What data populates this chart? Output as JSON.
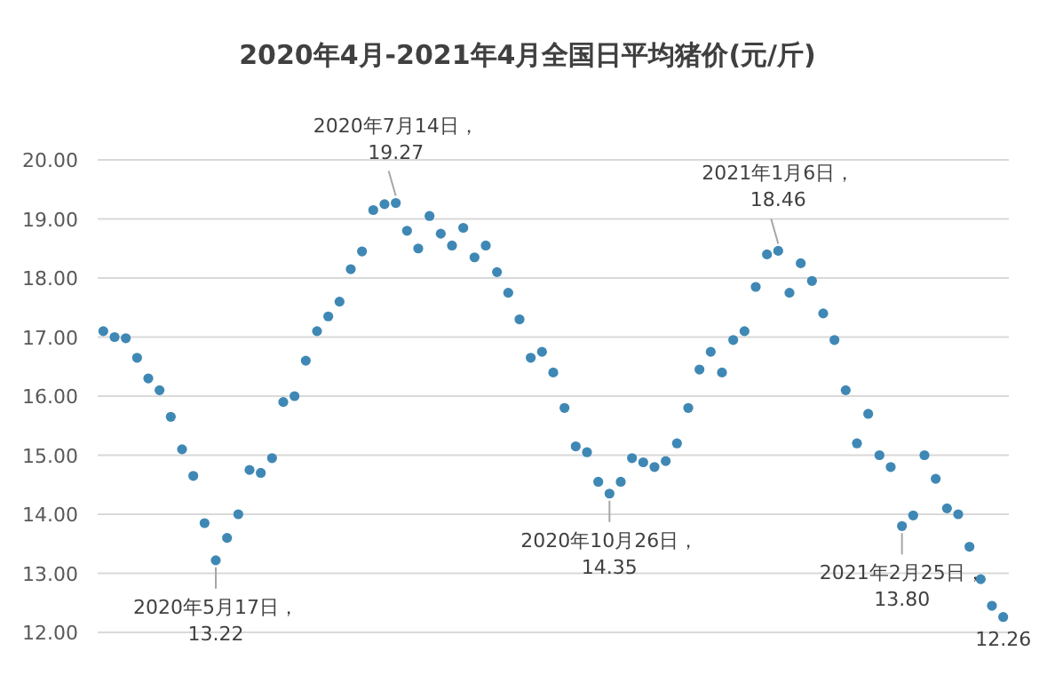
{
  "chart_data": {
    "type": "scatter",
    "title": "2020年4月-2021年4月全国日平均猪价(元/斤)",
    "categories": [
      null,
      null,
      null,
      null,
      null,
      null,
      null,
      null,
      null,
      null,
      null,
      null,
      null,
      null,
      null,
      null,
      null,
      null,
      null,
      null,
      null,
      null,
      null,
      null,
      null,
      null,
      null,
      null,
      null,
      null,
      null,
      null,
      null,
      null,
      null,
      null,
      null,
      null,
      null,
      null,
      null,
      null,
      null,
      null,
      null,
      null,
      null,
      null,
      null,
      null,
      null,
      null,
      null,
      null,
      null,
      null,
      null,
      null,
      null,
      null,
      null,
      null,
      null,
      null,
      null,
      null,
      null,
      null,
      null,
      null,
      null,
      null,
      null,
      null,
      null,
      null,
      null,
      null,
      null,
      null,
      null
    ],
    "series": [
      {
        "color": "#3f88b5",
        "values": [
          17.1,
          17.0,
          16.98,
          16.65,
          16.3,
          16.1,
          15.65,
          15.1,
          14.65,
          13.85,
          13.22,
          13.6,
          14.0,
          14.75,
          14.7,
          14.95,
          15.9,
          16.0,
          16.6,
          17.1,
          17.35,
          17.6,
          18.15,
          18.45,
          19.15,
          19.25,
          19.27,
          18.8,
          18.5,
          19.05,
          18.75,
          18.55,
          18.85,
          18.35,
          18.55,
          18.1,
          17.75,
          17.3,
          16.65,
          16.75,
          16.4,
          15.8,
          15.15,
          15.05,
          14.55,
          14.35,
          14.55,
          14.95,
          14.88,
          14.8,
          14.9,
          15.2,
          15.8,
          16.45,
          16.75,
          16.4,
          16.95,
          17.1,
          17.85,
          18.4,
          18.46,
          17.75,
          18.25,
          17.95,
          17.4,
          16.95,
          16.1,
          15.2,
          15.7,
          15.0,
          14.8,
          13.8,
          13.98,
          15.0,
          14.6,
          14.1,
          14.0,
          13.45,
          12.9,
          12.45,
          12.26
        ]
      }
    ],
    "ylim": [
      12,
      20
    ],
    "yticks": [
      {
        "value": 12,
        "label": "12.00"
      },
      {
        "value": 13,
        "label": "13.00"
      },
      {
        "value": 14,
        "label": "14.00"
      },
      {
        "value": 15,
        "label": "15.00"
      },
      {
        "value": 16,
        "label": "16.00"
      },
      {
        "value": 17,
        "label": "17.00"
      },
      {
        "value": 18,
        "label": "18.00"
      },
      {
        "value": 19,
        "label": "19.00"
      },
      {
        "value": 20,
        "label": "20.00"
      }
    ],
    "grid": "y",
    "marker": "circle",
    "tick_labels": "y",
    "annotations": [
      {
        "text": "2020年5月17日，13.22",
        "y": 13.22
      },
      {
        "text": "2020年7月14日，19.27",
        "y": 19.27
      },
      {
        "text": "2020年10月26日，14.35",
        "y": 14.35
      },
      {
        "text": "2021年1月6日，18.46",
        "y": 18.46
      },
      {
        "text": "2021年2月25日，13.80",
        "y": 13.8
      },
      "12.26"
    ]
  }
}
